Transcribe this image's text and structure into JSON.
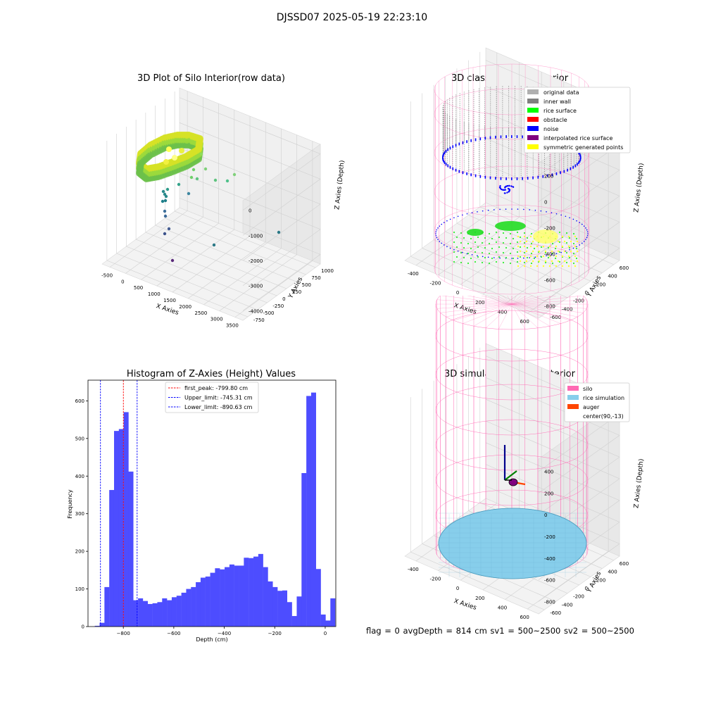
{
  "suptitle": "DJSSD07 2025-05-19 22:23:10",
  "status": "flag = 0     avgDepth = 814 cm  sv1 = 500~2500  sv2 = 500~2500",
  "colors": {
    "hist_bar": "#4d4dff",
    "first_peak_line": "#ff0000",
    "limit_lines": "#0000ff",
    "silo": "#ff69b4",
    "rice": "#87ceeb",
    "auger": "#ff4500"
  },
  "chart_data": [
    {
      "type": "scatter",
      "dimension": "3d",
      "title": "3D Plot of Silo Interior(row data)",
      "xlabel": "X Axies",
      "ylabel": "Y Axies",
      "zlabel": "Z Axies (Depth)",
      "xticks": [
        "-500",
        "0",
        "500",
        "1000",
        "1500",
        "2000",
        "2500",
        "3000",
        "3500"
      ],
      "yticks": [
        "-750",
        "-500",
        "-250",
        "0",
        "250",
        "500",
        "750",
        "1000"
      ],
      "zticks": [
        "0",
        "-1000",
        "-2000",
        "-3000",
        "-4000"
      ],
      "colormap": "viridis"
    },
    {
      "type": "scatter",
      "dimension": "3d",
      "title": "3D classify of Silo Interior",
      "xlabel": "X Axies",
      "ylabel": "Y Axies",
      "zlabel": "Z Axies (Depth)",
      "xticks": [
        "-400",
        "-200",
        "0",
        "200",
        "400",
        "600"
      ],
      "yticks": [
        "-600",
        "-400",
        "-200",
        "0",
        "200",
        "400",
        "600"
      ],
      "zticks": [
        "200",
        "0",
        "-200",
        "-400",
        "-600",
        "-800"
      ],
      "legend_position": "top-right",
      "legend": [
        {
          "label": "original data",
          "color": "#b0b0b0"
        },
        {
          "label": "inner wall",
          "color": "#808080"
        },
        {
          "label": "rice surface",
          "color": "#00ff00"
        },
        {
          "label": "obstacle",
          "color": "#ff0000"
        },
        {
          "label": "noise",
          "color": "#0000ff"
        },
        {
          "label": "interpolated rice surface",
          "color": "#800080"
        },
        {
          "label": "symmetric generated points",
          "color": "#ffff00"
        }
      ]
    },
    {
      "type": "bar",
      "title": "Histogram of Z-Axies (Height) Values",
      "xlabel": "Depth (cm)",
      "ylabel": "Frequency",
      "xlim": [
        -940,
        42
      ],
      "ylim": [
        0,
        655
      ],
      "xticks": [
        -800,
        -600,
        -400,
        -200,
        0
      ],
      "yticks": [
        0,
        100,
        200,
        300,
        400,
        500,
        600
      ],
      "bin_start": -913,
      "bin_width": 19.05,
      "values": [
        2,
        10,
        105,
        363,
        520,
        525,
        570,
        412,
        70,
        75,
        68,
        60,
        62,
        65,
        75,
        70,
        78,
        82,
        90,
        100,
        105,
        118,
        130,
        133,
        143,
        155,
        152,
        158,
        165,
        162,
        162,
        183,
        182,
        186,
        193,
        158,
        120,
        105,
        95,
        96,
        65,
        28,
        80,
        408,
        613,
        622,
        153,
        32,
        16,
        75
      ],
      "vlines": [
        {
          "x": -799.8,
          "label": "first_peak: -799.80 cm",
          "style": "first_peak"
        },
        {
          "x": -745.31,
          "label": "Upper_limit: -745.31 cm",
          "style": "limit"
        },
        {
          "x": -890.63,
          "label": "Lower_limit: -890.63 cm",
          "style": "limit"
        }
      ],
      "legend_position": "top-center"
    },
    {
      "type": "surface",
      "dimension": "3d",
      "title": "3D simulation of Silo Interior",
      "xlabel": "X Axies",
      "ylabel": "Y Axies",
      "zlabel": "Z Axies (Depth)",
      "xticks": [
        "-400",
        "-200",
        "0",
        "200",
        "400",
        "600"
      ],
      "yticks": [
        "-600",
        "-400",
        "-200",
        "0",
        "200",
        "400",
        "600"
      ],
      "zticks": [
        "400",
        "200",
        "0",
        "-200",
        "-400",
        "-600",
        "-800"
      ],
      "legend_position": "top-right",
      "legend": [
        {
          "label": "silo",
          "color": "#ff69b4"
        },
        {
          "label": "rice simulation",
          "color": "#87ceeb"
        },
        {
          "label": "auger",
          "color": "#ff4500"
        },
        {
          "label": "center(90,-13)",
          "color": ""
        }
      ]
    }
  ]
}
